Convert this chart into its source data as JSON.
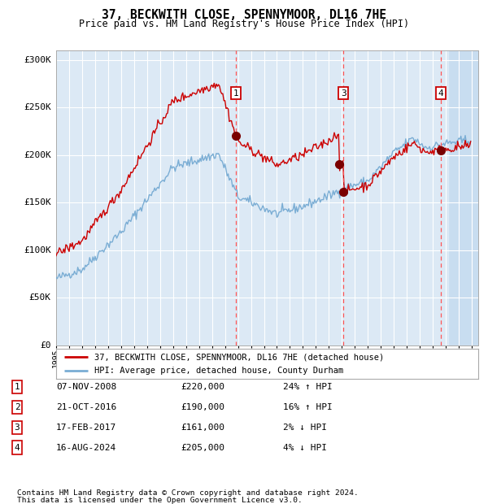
{
  "title": "37, BECKWITH CLOSE, SPENNYMOOR, DL16 7HE",
  "subtitle": "Price paid vs. HM Land Registry's House Price Index (HPI)",
  "ylim": [
    0,
    310000
  ],
  "yticks": [
    0,
    50000,
    100000,
    150000,
    200000,
    250000,
    300000
  ],
  "ytick_labels": [
    "£0",
    "£50K",
    "£100K",
    "£150K",
    "£200K",
    "£250K",
    "£300K"
  ],
  "xlim_start": 1995.0,
  "xlim_end": 2027.5,
  "bg_color": "#dce9f5",
  "grid_color": "#ffffff",
  "red_color": "#cc0000",
  "blue_color": "#7aadd4",
  "marker_color": "#7a0000",
  "dash_color": "#ff5555",
  "hatch_start": 2025.2,
  "sale_events": [
    {
      "t": 2008.854,
      "price": 220000,
      "label": "1",
      "show_vline": true
    },
    {
      "t": 2016.804,
      "price": 190000,
      "label": "2",
      "show_vline": false
    },
    {
      "t": 2017.123,
      "price": 161000,
      "label": "3",
      "show_vline": true
    },
    {
      "t": 2024.621,
      "price": 205000,
      "label": "4",
      "show_vline": true
    }
  ],
  "legend_line1": "37, BECKWITH CLOSE, SPENNYMOOR, DL16 7HE (detached house)",
  "legend_line2": "HPI: Average price, detached house, County Durham",
  "table_rows": [
    [
      "1",
      "07-NOV-2008",
      "£220,000",
      "24% ↑ HPI"
    ],
    [
      "2",
      "21-OCT-2016",
      "£190,000",
      "16% ↑ HPI"
    ],
    [
      "3",
      "17-FEB-2017",
      "£161,000",
      "2% ↓ HPI"
    ],
    [
      "4",
      "16-AUG-2024",
      "£205,000",
      "4% ↓ HPI"
    ]
  ],
  "footnote1": "Contains HM Land Registry data © Crown copyright and database right 2024.",
  "footnote2": "This data is licensed under the Open Government Licence v3.0."
}
